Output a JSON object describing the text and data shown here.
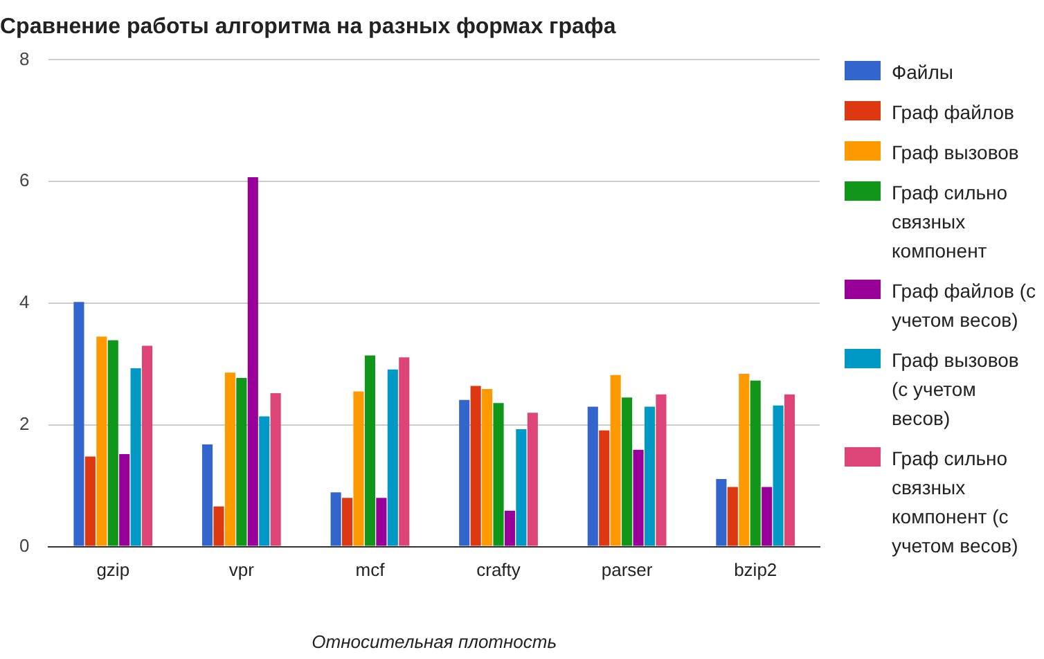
{
  "chart_data": {
    "type": "bar",
    "title": "Сравнение работы алгоритма на разных формах графа",
    "xlabel": "Относительная плотность",
    "categories": [
      "gzip",
      "vpr",
      "mcf",
      "crafty",
      "parser",
      "bzip2"
    ],
    "series": [
      {
        "name": "Файлы",
        "color": "#3366cc",
        "values": [
          4.02,
          1.68,
          0.89,
          2.41,
          2.3,
          1.11
        ]
      },
      {
        "name": "Граф файлов",
        "color": "#dc3912",
        "values": [
          1.48,
          0.66,
          0.8,
          2.64,
          1.91,
          0.98
        ]
      },
      {
        "name": "Граф вызовов",
        "color": "#ff9900",
        "values": [
          3.45,
          2.86,
          2.55,
          2.59,
          2.82,
          2.84
        ]
      },
      {
        "name": "Граф сильно связных компонент",
        "color": "#109618",
        "values": [
          3.39,
          2.77,
          3.14,
          2.36,
          2.45,
          2.73
        ]
      },
      {
        "name": "Граф файлов (с учетом весов)",
        "color": "#990099",
        "values": [
          1.52,
          6.07,
          0.8,
          0.59,
          1.59,
          0.98
        ]
      },
      {
        "name": "Граф вызовов (с учетом весов)",
        "color": "#0099c6",
        "values": [
          2.93,
          2.14,
          2.91,
          1.93,
          2.3,
          2.32
        ]
      },
      {
        "name": "Граф сильно связных компонент (с учетом весов)",
        "color": "#dd4477",
        "values": [
          3.3,
          2.52,
          3.11,
          2.2,
          2.5,
          2.5
        ]
      }
    ],
    "ylim": [
      0,
      8
    ],
    "yticks": [
      0,
      2,
      4,
      6,
      8
    ],
    "grid": "y",
    "legend": "right"
  }
}
